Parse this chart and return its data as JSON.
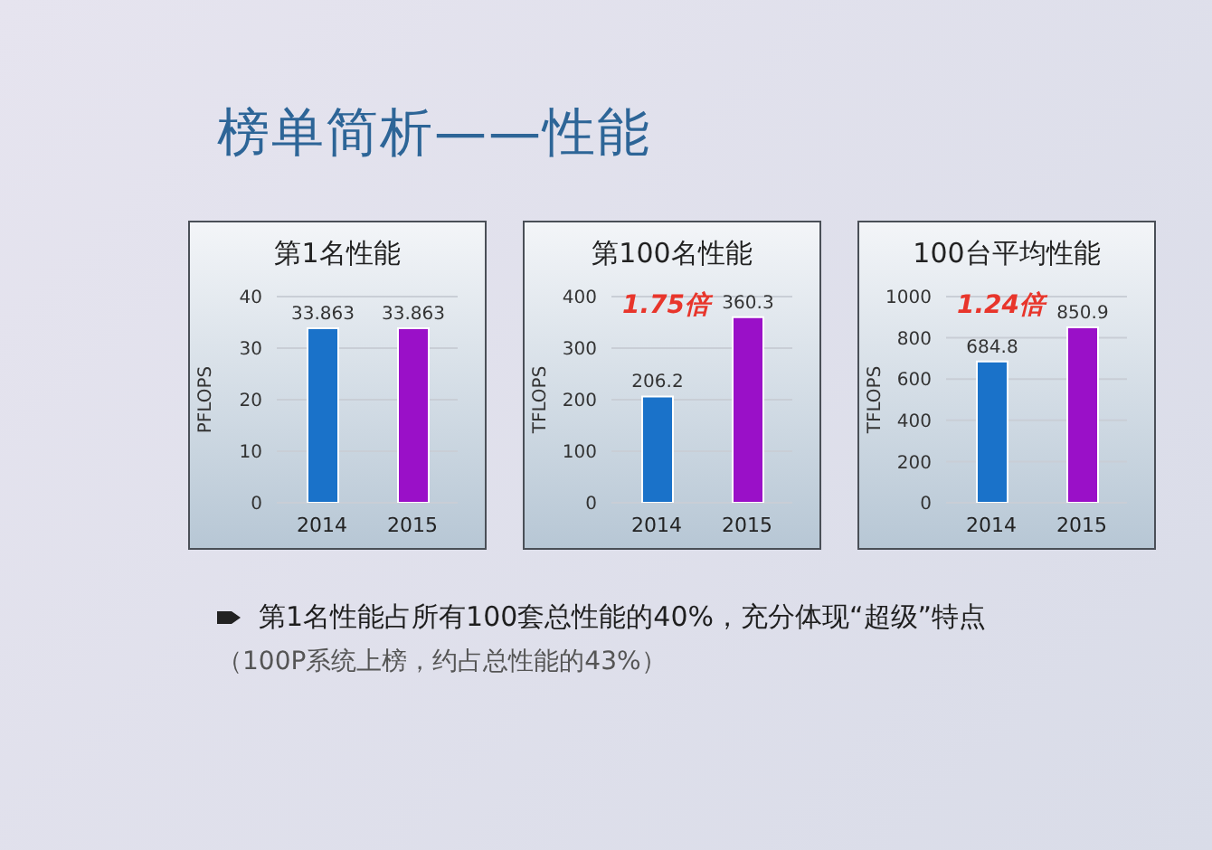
{
  "chart_data": [
    {
      "type": "other",
      "title": "榜单简析——性能"
    },
    {
      "type": "bar",
      "title": "第1名性能",
      "ylabel": "PFLOPS",
      "categories": [
        "2014",
        "2015"
      ],
      "values": [
        33.863,
        33.863
      ],
      "colors": [
        "#1a72c9",
        "#9a10c8"
      ],
      "ylim": [
        0,
        40
      ],
      "yticks": [
        0,
        10,
        20,
        30,
        40
      ],
      "grid": "y",
      "data_labels": true
    },
    {
      "type": "bar",
      "title": "第100名性能",
      "ylabel": "TFLOPS",
      "categories": [
        "2014",
        "2015"
      ],
      "values": [
        206.2,
        360.3
      ],
      "colors": [
        "#1a72c9",
        "#9a10c8"
      ],
      "ylim": [
        0,
        400
      ],
      "yticks": [
        0,
        100,
        200,
        300,
        400
      ],
      "grid": "y",
      "data_labels": true,
      "annotations": [
        "1.75倍"
      ]
    },
    {
      "type": "bar",
      "title": "100台平均性能",
      "ylabel": "TFLOPS",
      "categories": [
        "2014",
        "2015"
      ],
      "values": [
        684.8,
        850.9
      ],
      "colors": [
        "#1a72c9",
        "#9a10c8"
      ],
      "ylim": [
        0,
        1000
      ],
      "yticks": [
        0,
        200,
        400,
        600,
        800,
        1000
      ],
      "grid": "y",
      "data_labels": true,
      "annotations": [
        "1.24倍"
      ]
    },
    {
      "type": "other",
      "annotations": [
        "第1名性能占所有100套总性能的40%，充分体现“超级”特点",
        "（100P系统上榜，约占总性能的43%）"
      ]
    }
  ]
}
